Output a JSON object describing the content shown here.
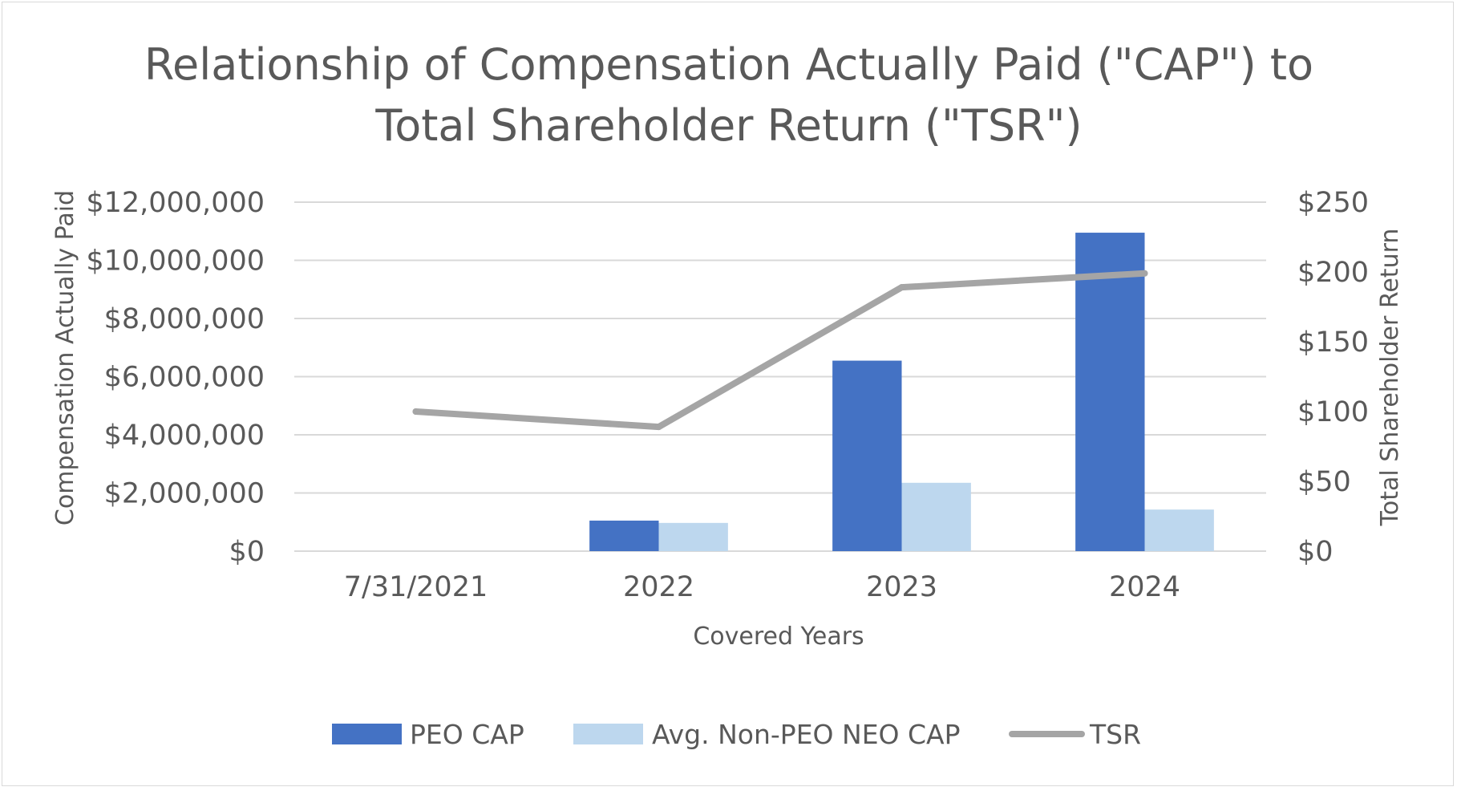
{
  "chart_data": {
    "type": "bar",
    "title_lines": [
      "Relationship of Compensation Actually Paid (\"CAP\") to",
      "Total Shareholder Return (\"TSR\")"
    ],
    "categories": [
      "7/31/2021",
      "2022",
      "2023",
      "2024"
    ],
    "xlabel": "Covered Years",
    "ylabel": "Compensation Actually Paid",
    "y2label": "Total Shareholder Return",
    "ylim": [
      0,
      12000000
    ],
    "y_ticks": [
      0,
      2000000,
      4000000,
      6000000,
      8000000,
      10000000,
      12000000
    ],
    "y_tick_labels": [
      "$0",
      "$2,000,000",
      "$4,000,000",
      "$6,000,000",
      "$8,000,000",
      "$10,000,000",
      "$12,000,000"
    ],
    "y2lim": [
      0,
      250
    ],
    "y2_ticks": [
      0,
      50,
      100,
      150,
      200,
      250
    ],
    "y2_tick_labels": [
      "$0",
      "$50",
      "$100",
      "$150",
      "$200",
      "$250"
    ],
    "grid": true,
    "legend_position": "bottom",
    "series": [
      {
        "name": "PEO CAP",
        "kind": "bar",
        "axis": "left",
        "color": "#4472C4",
        "values": [
          null,
          1050000,
          6550000,
          10950000
        ]
      },
      {
        "name": "Avg. Non-PEO NEO CAP",
        "kind": "bar",
        "axis": "left",
        "color": "#BDD7EE",
        "values": [
          null,
          970000,
          2350000,
          1430000
        ]
      },
      {
        "name": "TSR",
        "kind": "line",
        "axis": "right",
        "color": "#A5A5A5",
        "values": [
          100,
          89,
          189,
          199
        ]
      }
    ]
  }
}
